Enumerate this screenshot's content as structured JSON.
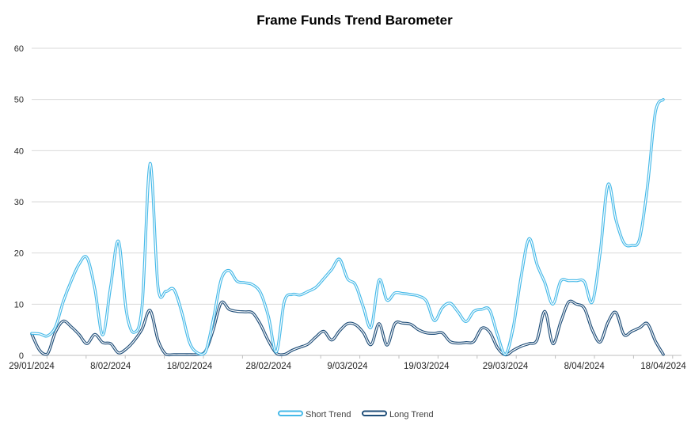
{
  "title": "Frame Funds Trend Barometer",
  "legend": {
    "items": [
      {
        "label": "Short Trend",
        "color": "#45b9e8"
      },
      {
        "label": "Long Trend",
        "color": "#1f4e79"
      }
    ],
    "position": "bottom-center"
  },
  "chart_data": {
    "type": "line",
    "title": "Frame Funds Trend Barometer",
    "xlabel": "",
    "ylabel": "",
    "ylim": [
      0,
      60
    ],
    "y_ticks": [
      0,
      10,
      20,
      30,
      40,
      50,
      60
    ],
    "grid": true,
    "grid_color": "#d9d9d9",
    "axis_color": "#bfbfbf",
    "label_color": "#262626",
    "line_style": "smooth-outlined-white-core",
    "x_start_date": "29/01/2024",
    "x_end_date": "18/04/2024",
    "x_interval": "daily",
    "n_points": 81,
    "x_tick_labels": [
      "29/01/2024",
      "8/02/2024",
      "18/02/2024",
      "28/02/2024",
      "9/03/2024",
      "19/03/2024",
      "29/03/2024",
      "8/04/2024",
      "18/04/2024"
    ],
    "series": [
      {
        "name": "Short Trend",
        "color": "#45b9e8",
        "values": [
          4.3,
          4.2,
          3.8,
          5.5,
          10.5,
          14.5,
          17.8,
          19.1,
          13,
          4,
          13.5,
          22.3,
          8.5,
          4.5,
          10,
          37.5,
          13.4,
          12.5,
          12.9,
          8.5,
          2.5,
          0.5,
          0.6,
          7,
          14.8,
          16.6,
          14.5,
          14.2,
          13.8,
          12.2,
          7.5,
          0.7,
          10.5,
          11.9,
          11.8,
          12.5,
          13.3,
          15,
          16.8,
          18.8,
          15,
          13.8,
          9.5,
          5.5,
          14.7,
          10.8,
          12.2,
          12.1,
          11.9,
          11.6,
          10.6,
          6.8,
          9.3,
          10.2,
          8.5,
          6.6,
          8.6,
          9,
          8.9,
          4,
          0.2,
          5.5,
          15.5,
          22.8,
          17.8,
          14.2,
          10,
          14.5,
          14.6,
          14.6,
          14.4,
          10.4,
          20,
          33.4,
          26.5,
          22,
          21.5,
          22.8,
          33,
          47.5,
          50
        ]
      },
      {
        "name": "Long Trend",
        "color": "#1f4e79",
        "values": [
          4.2,
          1,
          0.3,
          4.5,
          6.7,
          5.6,
          4.1,
          2.3,
          4.1,
          2.5,
          2.3,
          0.5,
          1.3,
          2.9,
          5.2,
          8.8,
          3,
          0.2,
          0.15,
          0.15,
          0.15,
          0.2,
          0.8,
          5,
          10.3,
          9,
          8.6,
          8.5,
          8.3,
          6,
          2.8,
          0.4,
          0.2,
          1,
          1.6,
          2.2,
          3.6,
          4.7,
          3,
          4.8,
          6.2,
          6,
          4.5,
          2.1,
          6.2,
          2,
          6.2,
          6.3,
          6.1,
          5,
          4.4,
          4.3,
          4.4,
          2.7,
          2.4,
          2.5,
          2.7,
          5.3,
          4.6,
          1.5,
          0.1,
          1,
          1.8,
          2.3,
          3,
          8.6,
          2.3,
          6.5,
          10.4,
          10,
          9.2,
          5,
          2.6,
          6.5,
          8.4,
          4.1,
          4.7,
          5.4,
          6.2,
          2.8,
          0.2
        ]
      }
    ],
    "legend_position": "bottom"
  }
}
